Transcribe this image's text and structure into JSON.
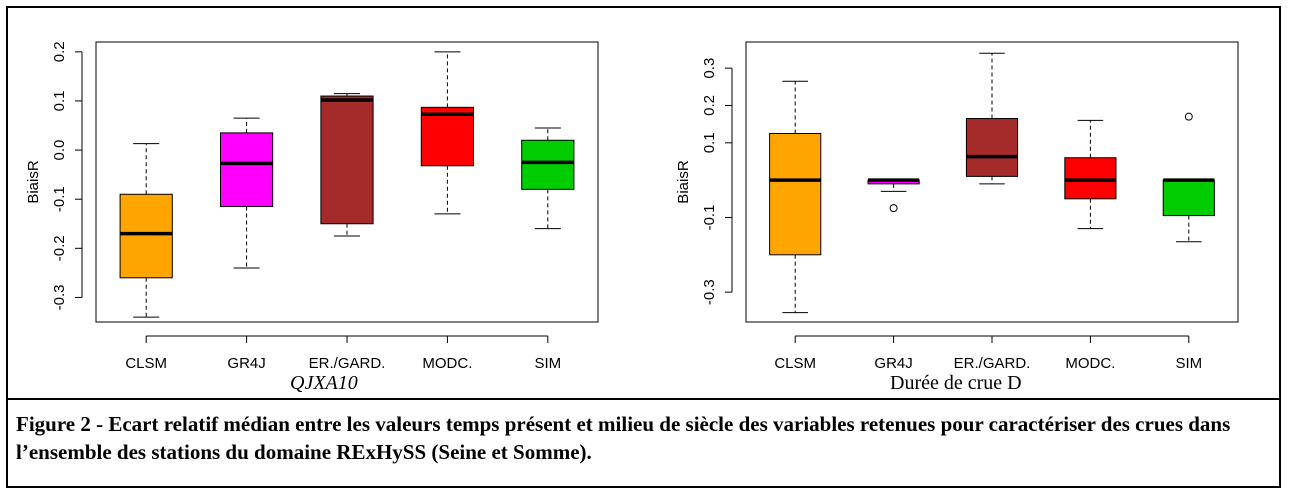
{
  "figure": {
    "caption": "Figure 2 - Ecart relatif médian entre les valeurs temps présent et milieu de siècle des variables retenues pour caractériser des crues dans l’ensemble des stations du domaine RExHySS (Seine et Somme)."
  },
  "panels": {
    "left_caption": "QJXA10",
    "right_caption": "Durée de crue D"
  },
  "chart_data": [
    {
      "type": "box",
      "ylabel": "BiaisR",
      "categories": [
        "CLSM",
        "GR4J",
        "ER./GARD.",
        "MODC.",
        "SIM"
      ],
      "ylim": [
        -0.35,
        0.22
      ],
      "yticks": [
        -0.3,
        -0.2,
        -0.1,
        0.0,
        0.1,
        0.2
      ],
      "ytick_labels": [
        "-0.3",
        "-0.2",
        "-0.1",
        "0.0",
        "0.1",
        "0.2"
      ],
      "series": [
        {
          "category": "CLSM",
          "color": "#FFA500",
          "whisker_low": -0.34,
          "q1": -0.26,
          "median": -0.17,
          "q3": -0.09,
          "whisker_high": 0.013,
          "outliers": []
        },
        {
          "category": "GR4J",
          "color": "#FF00FF",
          "whisker_low": -0.24,
          "q1": -0.115,
          "median": -0.027,
          "q3": 0.035,
          "whisker_high": 0.065,
          "outliers": []
        },
        {
          "category": "ER./GARD.",
          "color": "#A52A2A",
          "whisker_low": -0.175,
          "q1": -0.15,
          "median": 0.102,
          "q3": 0.11,
          "whisker_high": 0.115,
          "outliers": []
        },
        {
          "category": "MODC.",
          "color": "#FF0000",
          "whisker_low": -0.13,
          "q1": -0.032,
          "median": 0.073,
          "q3": 0.087,
          "whisker_high": 0.2,
          "outliers": []
        },
        {
          "category": "SIM",
          "color": "#00CC00",
          "whisker_low": -0.16,
          "q1": -0.08,
          "median": -0.025,
          "q3": 0.02,
          "whisker_high": 0.045,
          "outliers": []
        }
      ]
    },
    {
      "type": "box",
      "ylabel": "BiaisR",
      "categories": [
        "CLSM",
        "GR4J",
        "ER./GARD.",
        "MODC.",
        "SIM"
      ],
      "ylim": [
        -0.38,
        0.37
      ],
      "yticks": [
        -0.3,
        -0.1,
        0.1,
        0.2,
        0.3
      ],
      "ytick_labels": [
        "-0.3",
        "-0.1",
        "0.1",
        "0.2",
        "0.3"
      ],
      "series": [
        {
          "category": "CLSM",
          "color": "#FFA500",
          "whisker_low": -0.355,
          "q1": -0.2,
          "median": 0.0,
          "q3": 0.125,
          "whisker_high": 0.265,
          "outliers": []
        },
        {
          "category": "GR4J",
          "color": "#FF00FF",
          "whisker_low": -0.03,
          "q1": -0.01,
          "median": 0.0,
          "q3": 0.0,
          "whisker_high": 0.0,
          "outliers": [
            -0.075
          ]
        },
        {
          "category": "ER./GARD.",
          "color": "#A52A2A",
          "whisker_low": -0.01,
          "q1": 0.01,
          "median": 0.063,
          "q3": 0.165,
          "whisker_high": 0.34,
          "outliers": []
        },
        {
          "category": "MODC.",
          "color": "#FF0000",
          "whisker_low": -0.13,
          "q1": -0.05,
          "median": 0.0,
          "q3": 0.06,
          "whisker_high": 0.16,
          "outliers": []
        },
        {
          "category": "SIM",
          "color": "#00CC00",
          "whisker_low": -0.165,
          "q1": -0.095,
          "median": 0.0,
          "q3": 0.0,
          "whisker_high": 0.0,
          "outliers": [
            0.17
          ]
        }
      ]
    }
  ]
}
